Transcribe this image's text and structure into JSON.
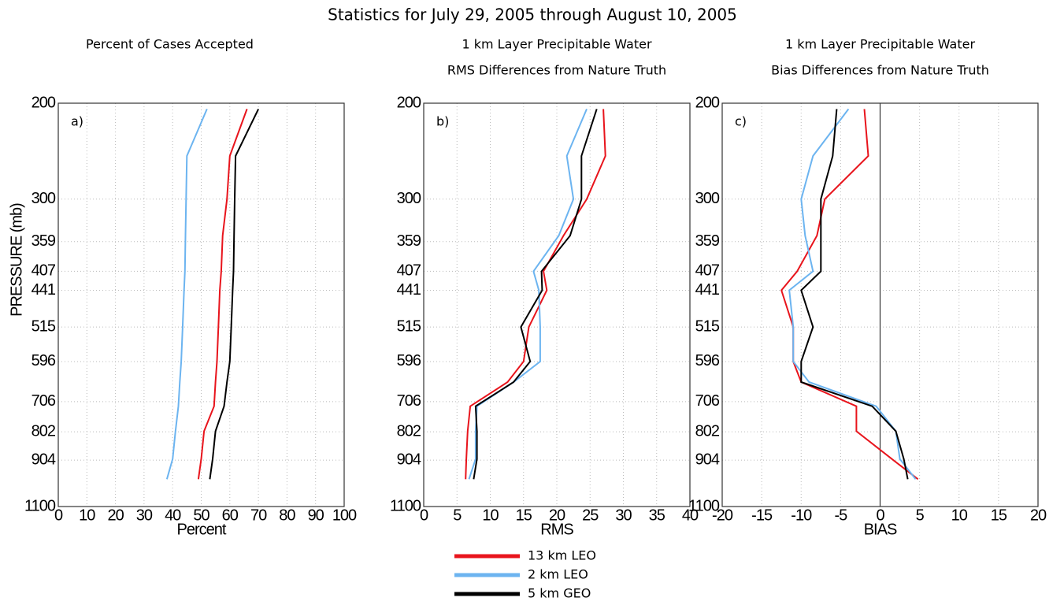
{
  "title": "Statistics for July 29, 2005 through August 10, 2005",
  "chart_data": [
    {
      "type": "line",
      "title": "Percent of Cases Accepted",
      "annotation": "a)",
      "xlabel": "Percent",
      "ylabel": "PRESSURE (mb)",
      "xlim": [
        0,
        100
      ],
      "xticks": [
        0,
        10,
        20,
        30,
        40,
        50,
        60,
        70,
        80,
        90,
        100
      ],
      "ylim": [
        1100,
        200
      ],
      "yticks": [
        200,
        300,
        359,
        407,
        441,
        515,
        596,
        706,
        802,
        904,
        1100
      ],
      "y_scale": "log",
      "grid": true,
      "y": [
        205,
        250,
        300,
        350,
        407,
        441,
        515,
        596,
        650,
        720,
        800,
        900,
        980
      ],
      "series": [
        {
          "name": "13 km LEO",
          "color": "#e8141c",
          "values": [
            66,
            60,
            59,
            57.5,
            57,
            56.5,
            56,
            55.5,
            55,
            54.5,
            51,
            50,
            49
          ]
        },
        {
          "name": "2 km LEO",
          "color": "#6cb4f0",
          "values": [
            52,
            45,
            44.7,
            44.5,
            44.3,
            44,
            43.5,
            43,
            42.5,
            42,
            41,
            40,
            38
          ]
        },
        {
          "name": "5 km GEO",
          "color": "#000000",
          "values": [
            70,
            62,
            61.7,
            61.5,
            61.3,
            61,
            60.5,
            60,
            59,
            58,
            55,
            54,
            53
          ]
        }
      ]
    },
    {
      "type": "line",
      "title": "1 km Layer Precipitable Water",
      "subtitle": "RMS Differences from Nature Truth",
      "annotation": "b)",
      "xlabel": "RMS",
      "xlim": [
        0,
        40
      ],
      "xticks": [
        0,
        5,
        10,
        15,
        20,
        25,
        30,
        35,
        40
      ],
      "ylim": [
        1100,
        200
      ],
      "yticks": [
        200,
        300,
        359,
        407,
        441,
        515,
        596,
        706,
        802,
        904,
        1100
      ],
      "y_scale": "log",
      "grid": true,
      "y": [
        205,
        250,
        300,
        350,
        407,
        441,
        515,
        596,
        650,
        720,
        800,
        900,
        980
      ],
      "series": [
        {
          "name": "13 km LEO",
          "color": "#e8141c",
          "values": [
            27,
            27.3,
            24.5,
            21,
            18,
            18.5,
            15.8,
            15,
            12.6,
            7,
            6.6,
            6.4,
            6.3
          ]
        },
        {
          "name": "2 km LEO",
          "color": "#6cb4f0",
          "values": [
            24.5,
            21.5,
            22.5,
            20.3,
            16.5,
            17.3,
            17.5,
            17.5,
            13.5,
            8,
            7.8,
            7.8,
            6.8
          ]
        },
        {
          "name": "5 km GEO",
          "color": "#000000",
          "values": [
            26,
            23.7,
            23.7,
            22,
            17.7,
            17.8,
            14.6,
            16,
            13.5,
            7.8,
            8,
            8,
            7.5
          ]
        }
      ]
    },
    {
      "type": "line",
      "title": "1 km Layer Precipitable Water",
      "subtitle": "Bias Differences from Nature Truth",
      "annotation": "c)",
      "xlabel": "BIAS",
      "xlim": [
        -20,
        20
      ],
      "xticks": [
        -20,
        -15,
        -10,
        -5,
        0,
        5,
        10,
        15,
        20
      ],
      "ylim": [
        1100,
        200
      ],
      "yticks": [
        200,
        300,
        359,
        407,
        441,
        515,
        596,
        706,
        802,
        904,
        1100
      ],
      "y_scale": "log",
      "grid": true,
      "xline": 0,
      "y": [
        205,
        250,
        300,
        350,
        407,
        441,
        515,
        596,
        650,
        720,
        800,
        900,
        980
      ],
      "series": [
        {
          "name": "13 km LEO",
          "color": "#e8141c",
          "values": [
            -2,
            -1.5,
            -7,
            -8,
            -10.5,
            -12.5,
            -11,
            -11,
            -10,
            -3,
            -3,
            1.5,
            4.8
          ]
        },
        {
          "name": "2 km LEO",
          "color": "#6cb4f0",
          "values": [
            -4,
            -8.5,
            -10,
            -9.5,
            -8.5,
            -11.5,
            -11,
            -11,
            -9,
            -0.5,
            2,
            2.5,
            4.5
          ]
        },
        {
          "name": "5 km GEO",
          "color": "#000000",
          "values": [
            -5.5,
            -6,
            -7.5,
            -7.5,
            -7.5,
            -10,
            -8.5,
            -10,
            -10,
            -1,
            2,
            3,
            3.5
          ]
        }
      ]
    }
  ]
}
